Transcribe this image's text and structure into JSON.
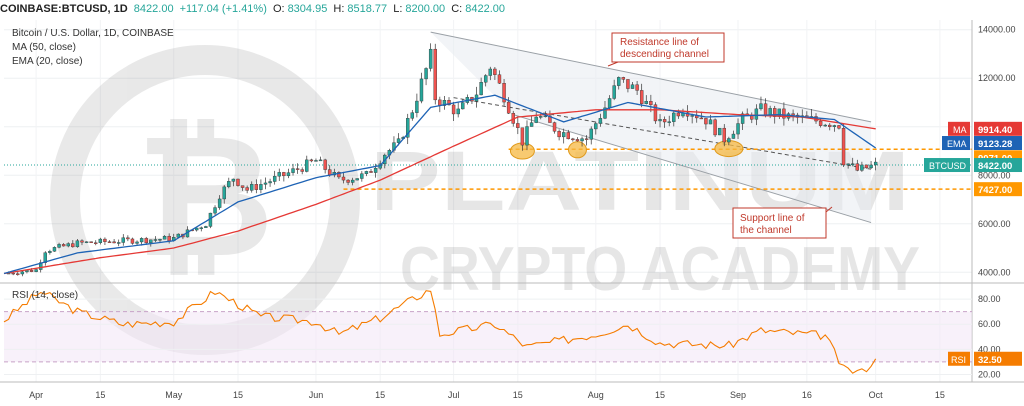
{
  "header": {
    "symbol": "COINBASE:BTCUSD, 1D",
    "last": "8422.00",
    "change": "+117.04 (+1.41%)",
    "o_label": "O:",
    "o": "8304.95",
    "h_label": "H:",
    "h": "8518.77",
    "l_label": "L:",
    "l": "8200.00",
    "c_label": "C:",
    "c": "8422.00"
  },
  "legend": {
    "title": "Bitcoin / U.S. Dollar, 1D, COINBASE",
    "ma": "MA (50, close)",
    "ema": "EMA (20, close)",
    "rsi": "RSI (14, close)"
  },
  "watermark": {
    "line1": "PLATINUM",
    "line2": "CRYPTO ACADEMY"
  },
  "annotations": {
    "resistance": [
      "Resistance line of",
      "descending channel"
    ],
    "support": [
      "Support line of",
      "the channel"
    ]
  },
  "colors": {
    "up": "#26a69a",
    "down": "#ef5350",
    "ma": "#e53935",
    "ema": "#1e63b5",
    "rsi": "#f57c00",
    "channel": "#9aa0a6",
    "level": "#ff9800",
    "oval": "#f5b841"
  },
  "chart_data": [
    {
      "type": "candlestick",
      "title": "Bitcoin / U.S. Dollar, 1D, COINBASE",
      "x_ticks": [
        "Apr",
        "15",
        "May",
        "15",
        "Jun",
        "15",
        "Jul",
        "15",
        "Aug",
        "15",
        "Sep",
        "16",
        "Oct",
        "15"
      ],
      "y_ticks": [
        4000,
        6000,
        8000,
        10000,
        12000,
        14000
      ],
      "ylim": [
        3600,
        14400
      ],
      "tags": [
        {
          "name": "MA",
          "value": "9914.40",
          "color": "#e53935"
        },
        {
          "name": "EMA",
          "value": "9123.28",
          "color": "#1e63b5"
        },
        {
          "name": "",
          "value": "9071.00",
          "color": "#ff9800"
        },
        {
          "name": "BTCUSD",
          "value": "8422.00",
          "color": "#26a69a"
        },
        {
          "name": "",
          "value": "7427.00",
          "color": "#ff9800"
        }
      ],
      "horizontal_levels": [
        9071,
        7427
      ],
      "channel": {
        "resistance": [
          [
            "Jun 26",
            13900
          ],
          [
            "Sep 30",
            10200
          ]
        ],
        "support": [
          [
            "Jul 14",
            10500
          ],
          [
            "Sep 30",
            6050
          ]
        ],
        "mid": [
          [
            "Jul 1",
            11200
          ],
          [
            "Sep 30",
            8250
          ]
        ]
      },
      "price_path": [
        [
          "Mar 25",
          3950
        ],
        [
          "Apr 1",
          4100
        ],
        [
          "Apr 3",
          4900
        ],
        [
          "Apr 10",
          5200
        ],
        [
          "Apr 20",
          5300
        ],
        [
          "May 1",
          5400
        ],
        [
          "May 8",
          6000
        ],
        [
          "May 11",
          7200
        ],
        [
          "May 14",
          7900
        ],
        [
          "May 17",
          7400
        ],
        [
          "May 25",
          8000
        ],
        [
          "Jun 1",
          8600
        ],
        [
          "Jun 6",
          7800
        ],
        [
          "Jun 12",
          8000
        ],
        [
          "Jun 16",
          8900
        ],
        [
          "Jun 19",
          9300
        ],
        [
          "Jun 22",
          10700
        ],
        [
          "Jun 26",
          12900
        ],
        [
          "Jun 27",
          11200
        ],
        [
          "Jul 2",
          10600
        ],
        [
          "Jul 6",
          11400
        ],
        [
          "Jul 9",
          12500
        ],
        [
          "Jul 12",
          11300
        ],
        [
          "Jul 16",
          9400
        ],
        [
          "Jul 19",
          10500
        ],
        [
          "Jul 24",
          9800
        ],
        [
          "Jul 30",
          9500
        ],
        [
          "Aug 3",
          10800
        ],
        [
          "Aug 6",
          11900
        ],
        [
          "Aug 10",
          11500
        ],
        [
          "Aug 15",
          10100
        ],
        [
          "Aug 20",
          10800
        ],
        [
          "Aug 25",
          10300
        ],
        [
          "Aug 29",
          9500
        ],
        [
          "Sep 2",
          10300
        ],
        [
          "Sep 6",
          10700
        ],
        [
          "Sep 12",
          10400
        ],
        [
          "Sep 20",
          10200
        ],
        [
          "Sep 23",
          10100
        ],
        [
          "Sep 24",
          8600
        ],
        [
          "Sep 27",
          8200
        ],
        [
          "Oct 1",
          8422
        ]
      ],
      "ma50_path": [
        [
          "Mar 25",
          3950
        ],
        [
          "Apr 15",
          4600
        ],
        [
          "May 1",
          5000
        ],
        [
          "May 15",
          5700
        ],
        [
          "Jun 1",
          6800
        ],
        [
          "Jun 15",
          7800
        ],
        [
          "Jul 1",
          9200
        ],
        [
          "Jul 15",
          10400
        ],
        [
          "Aug 1",
          10700
        ],
        [
          "Aug 15",
          10700
        ],
        [
          "Sep 1",
          10500
        ],
        [
          "Sep 15",
          10400
        ],
        [
          "Oct 1",
          9914
        ]
      ],
      "ema20_path": [
        [
          "Mar 25",
          3950
        ],
        [
          "Apr 10",
          4800
        ],
        [
          "May 1",
          5300
        ],
        [
          "May 15",
          6900
        ],
        [
          "Jun 1",
          7900
        ],
        [
          "Jun 15",
          8400
        ],
        [
          "Jun 26",
          10800
        ],
        [
          "Jul 10",
          11300
        ],
        [
          "Jul 25",
          10200
        ],
        [
          "Aug 8",
          11000
        ],
        [
          "Aug 25",
          10400
        ],
        [
          "Sep 10",
          10500
        ],
        [
          "Sep 22",
          10300
        ],
        [
          "Oct 1",
          9123
        ]
      ]
    },
    {
      "type": "line",
      "title": "RSI (14, close)",
      "y_ticks": [
        20,
        40,
        60,
        80
      ],
      "ylim": [
        14,
        92
      ],
      "bands": [
        30,
        70
      ],
      "last": "32.50",
      "series": [
        {
          "name": "RSI",
          "values": [
            [
              "Mar 25",
              63
            ],
            [
              "Apr 2",
              86
            ],
            [
              "Apr 10",
              70
            ],
            [
              "Apr 20",
              60
            ],
            [
              "May 1",
              62
            ],
            [
              "May 10",
              86
            ],
            [
              "May 20",
              66
            ],
            [
              "Jun 1",
              62
            ],
            [
              "Jun 6",
              52
            ],
            [
              "Jun 15",
              65
            ],
            [
              "Jun 26",
              88
            ],
            [
              "Jun 28",
              52
            ],
            [
              "Jul 10",
              60
            ],
            [
              "Jul 17",
              42
            ],
            [
              "Aug 1",
              52
            ],
            [
              "Aug 8",
              60
            ],
            [
              "Aug 15",
              45
            ],
            [
              "Aug 30",
              43
            ],
            [
              "Sep 6",
              55
            ],
            [
              "Sep 20",
              51
            ],
            [
              "Sep 24",
              24
            ],
            [
              "Sep 28",
              22
            ],
            [
              "Oct 1",
              32.5
            ]
          ]
        }
      ]
    }
  ]
}
